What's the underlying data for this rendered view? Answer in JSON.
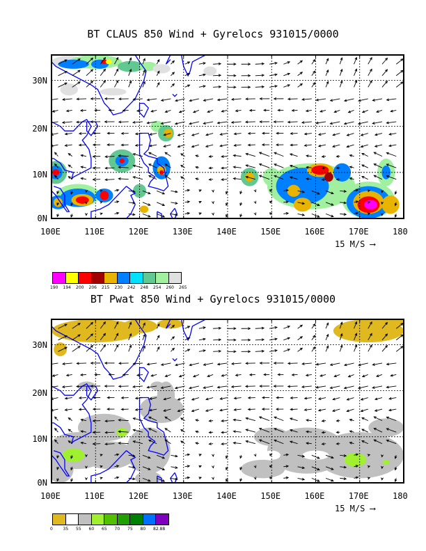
{
  "panel1": {
    "title": "BT CLAUS 850 Wind + Gyrelocs 931015/0000",
    "lat_labels": [
      "30N",
      "20N",
      "10N",
      "0N"
    ],
    "lon_labels": [
      "100E",
      "110E",
      "120E",
      "130E",
      "140E",
      "150E",
      "160E",
      "170E",
      "180"
    ],
    "scale_label": "15 M/S",
    "legend_colors": [
      "#ff00ff",
      "#ffff00",
      "#ff0000",
      "#a00000",
      "#e8b400",
      "#0080ff",
      "#00e0ff",
      "#60c890",
      "#a0f0a0",
      "#e0e0e0"
    ],
    "legend_ticks": [
      "190",
      "194",
      "200",
      "206",
      "215",
      "230",
      "242",
      "248",
      "254",
      "260",
      "265"
    ]
  },
  "panel2": {
    "title": "BT Pwat 850 Wind + Gyrelocs 931015/0000",
    "lat_labels": [
      "30N",
      "20N",
      "10N",
      "0N"
    ],
    "lon_labels": [
      "100E",
      "110E",
      "120E",
      "130E",
      "140E",
      "150E",
      "160E",
      "170E",
      "180"
    ],
    "scale_label": "15 M/S",
    "legend_colors": [
      "#e0b820",
      "#ffffff",
      "#c0c0c0",
      "#a0f030",
      "#50c000",
      "#20a000",
      "#008000",
      "#0070ff",
      "#8000c0"
    ],
    "legend_ticks": [
      "0",
      "35",
      "55",
      "60",
      "65",
      "70",
      "75",
      "80",
      "82.88"
    ]
  }
}
